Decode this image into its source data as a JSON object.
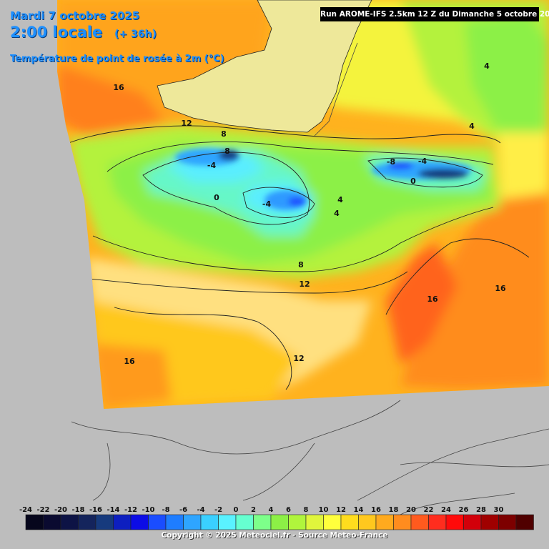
{
  "header": {
    "date": "Mardi 7 octobre 2025",
    "time": "2:00 locale",
    "lead": "(+ 36h)",
    "parameter": "Température de point de rosée à 2m (°C)"
  },
  "run_info": "Run AROME-IFS 2.5km 12 Z du Dimanche 5 octobre 2025",
  "contour_labels": [
    {
      "text": "16",
      "pos": [
        166,
        126
      ]
    },
    {
      "text": "12",
      "pos": [
        261,
        176
      ]
    },
    {
      "text": "8",
      "pos": [
        313,
        191
      ]
    },
    {
      "text": "8",
      "pos": [
        318,
        215
      ]
    },
    {
      "text": "-4",
      "pos": [
        296,
        235
      ]
    },
    {
      "text": "0",
      "pos": [
        303,
        280
      ]
    },
    {
      "text": "-4",
      "pos": [
        373,
        289
      ]
    },
    {
      "text": "4",
      "pos": [
        476,
        283
      ]
    },
    {
      "text": "4",
      "pos": [
        471,
        302
      ]
    },
    {
      "text": "-8",
      "pos": [
        547,
        230
      ]
    },
    {
      "text": "-4",
      "pos": [
        591,
        229
      ]
    },
    {
      "text": "0",
      "pos": [
        578,
        257
      ]
    },
    {
      "text": "4",
      "pos": [
        681,
        96
      ]
    },
    {
      "text": "4",
      "pos": [
        660,
        180
      ]
    },
    {
      "text": "8",
      "pos": [
        421,
        374
      ]
    },
    {
      "text": "12",
      "pos": [
        426,
        401
      ]
    },
    {
      "text": "16",
      "pos": [
        605,
        422
      ]
    },
    {
      "text": "16",
      "pos": [
        700,
        407
      ]
    },
    {
      "text": "12",
      "pos": [
        418,
        505
      ]
    },
    {
      "text": "16",
      "pos": [
        181,
        509
      ]
    }
  ],
  "legend": {
    "ticks": [
      "-24",
      "-22",
      "-20",
      "-18",
      "-16",
      "-14",
      "-12",
      "-10",
      "-8",
      "-6",
      "-4",
      "-2",
      "0",
      "2",
      "4",
      "6",
      "8",
      "10",
      "12",
      "14",
      "16",
      "18",
      "20",
      "22",
      "24",
      "26",
      "28",
      "30"
    ],
    "colors": [
      "#06061c",
      "#0a0a30",
      "#0d1345",
      "#14245c",
      "#163a7d",
      "#0d1fc0",
      "#0c0ce6",
      "#1a4dff",
      "#1e7dff",
      "#2ea5ff",
      "#3ad0ff",
      "#5af2ff",
      "#66ffd0",
      "#7dff8a",
      "#8cf046",
      "#b0f53c",
      "#e0f53c",
      "#ffff3c",
      "#ffdd1e",
      "#ffc81e",
      "#ffaa1e",
      "#ff8c1e",
      "#ff5a1e",
      "#ff2d1e",
      "#ff0a0a",
      "#d2000a",
      "#a00000",
      "#7d0000",
      "#500000"
    ]
  },
  "credit": "Copyright © 2025 Meteociel.fr - Source Meteo-France"
}
